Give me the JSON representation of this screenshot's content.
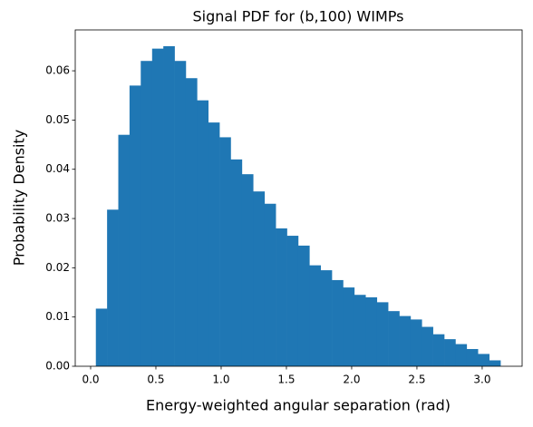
{
  "chart_data": {
    "type": "histogram",
    "title": "Signal PDF for (b,100) WIMPs",
    "x_label": "Energy-weighted angular separation (rad)",
    "y_label": "Probability Density",
    "color": "#1f77b4",
    "bins": [
      0.04,
      0.126,
      0.212,
      0.298,
      0.384,
      0.471,
      0.557,
      0.643,
      0.729,
      0.815,
      0.901,
      0.987,
      1.073,
      1.159,
      1.245,
      1.332,
      1.418,
      1.504,
      1.59,
      1.676,
      1.762,
      1.848,
      1.934,
      2.02,
      2.106,
      2.193,
      2.279,
      2.365,
      2.451,
      2.537,
      2.623,
      2.709,
      2.795,
      2.881,
      2.967,
      3.054,
      3.14
    ],
    "values": [
      0.0117,
      0.0318,
      0.047,
      0.057,
      0.062,
      0.0645,
      0.065,
      0.062,
      0.0585,
      0.054,
      0.0495,
      0.0465,
      0.042,
      0.039,
      0.0355,
      0.033,
      0.028,
      0.0265,
      0.0245,
      0.0205,
      0.0195,
      0.0175,
      0.016,
      0.0145,
      0.014,
      0.013,
      0.0112,
      0.0102,
      0.0095,
      0.008,
      0.0065,
      0.0055,
      0.0045,
      0.0035,
      0.0025,
      0.0012
    ],
    "xlim": [
      -0.118,
      3.306
    ],
    "xticks": [
      {
        "value": 0,
        "label": "0.0"
      },
      0.5,
      {
        "value": 1,
        "label": "1.0"
      },
      1.5,
      {
        "value": 2,
        "label": "2.0"
      },
      2.5,
      {
        "value": 3,
        "label": "3.0"
      }
    ],
    "ylim": [
      0,
      0.0683
    ],
    "yticks": [
      {
        "value": 0,
        "label": "0.00"
      },
      {
        "value": 0.01,
        "label": "0.01"
      },
      {
        "value": 0.02,
        "label": "0.02"
      },
      {
        "value": 0.03,
        "label": "0.03"
      },
      {
        "value": 0.04,
        "label": "0.04"
      },
      {
        "value": 0.05,
        "label": "0.05"
      },
      {
        "value": 0.06,
        "label": "0.06"
      }
    ],
    "grid": false
  }
}
